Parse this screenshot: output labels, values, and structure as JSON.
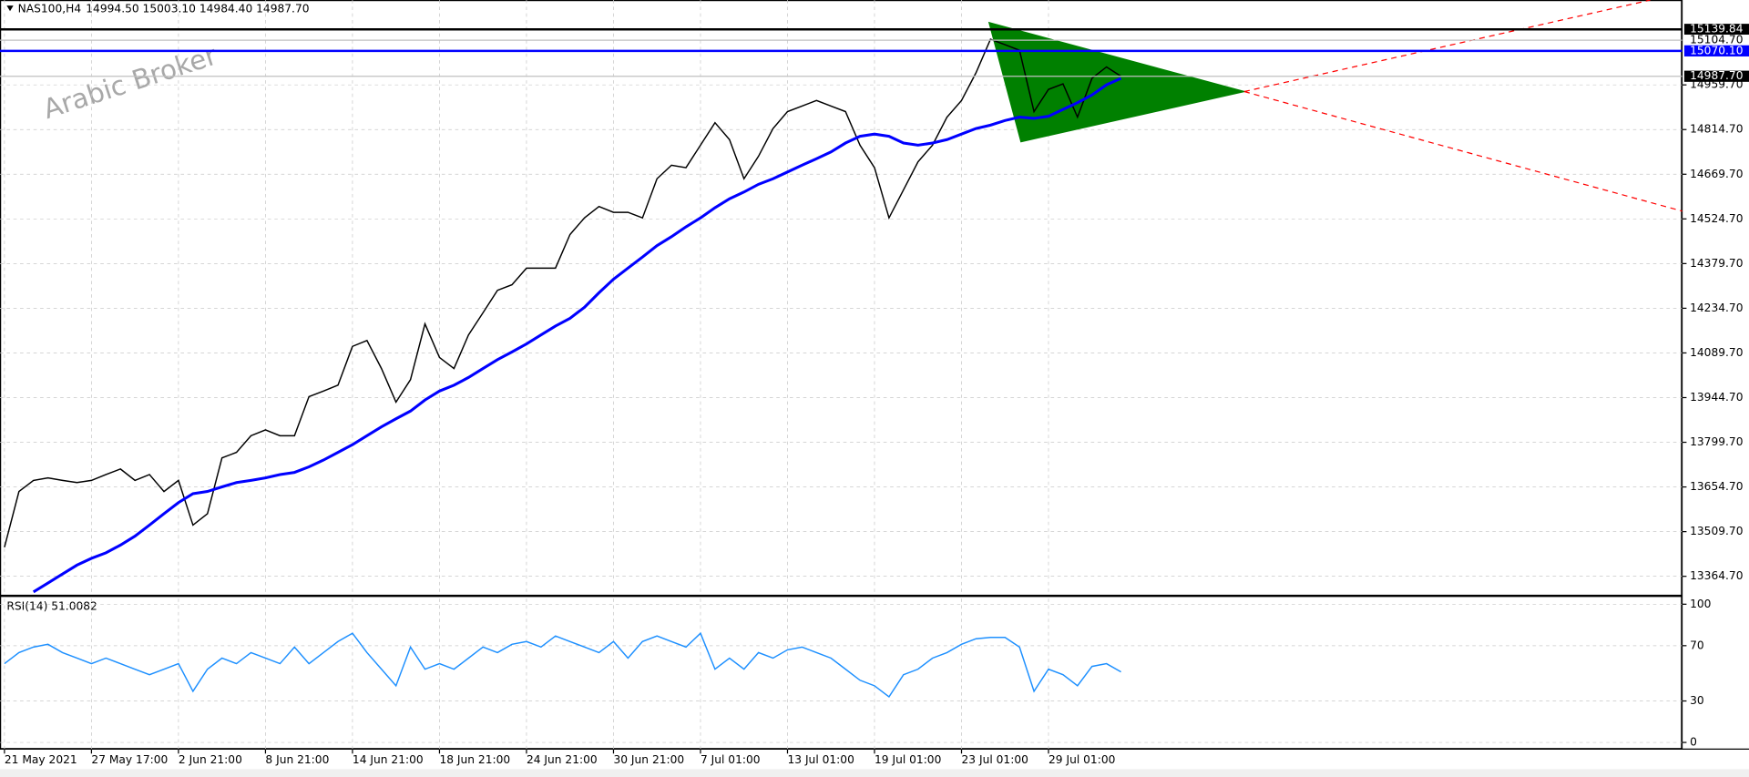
{
  "chart_data": [
    {
      "type": "line",
      "title": "NAS100,H4",
      "subtitle": "14994.50 15003.10 14984.40 14987.70",
      "watermark": "Arabic Broker",
      "categories": [
        "21 May 2021",
        null,
        null,
        null,
        null,
        null,
        "27 May 17:00",
        null,
        null,
        null,
        null,
        null,
        "2 Jun 21:00",
        null,
        null,
        null,
        null,
        null,
        "8 Jun 21:00",
        null,
        null,
        null,
        null,
        null,
        "14 Jun 21:00",
        null,
        null,
        null,
        null,
        null,
        "18 Jun 21:00",
        null,
        null,
        null,
        null,
        null,
        "24 Jun 21:00",
        null,
        null,
        null,
        null,
        null,
        "30 Jun 21:00",
        null,
        null,
        null,
        null,
        null,
        "7 Jul 01:00",
        null,
        null,
        null,
        null,
        null,
        "13 Jul 01:00",
        null,
        null,
        null,
        null,
        null,
        "19 Jul 01:00",
        null,
        null,
        null,
        null,
        null,
        "23 Jul 01:00",
        null,
        null,
        null,
        null,
        null,
        "29 Jul 01:00",
        null,
        null,
        null,
        null,
        null
      ],
      "series": [
        {
          "name": "NAS100,H4",
          "color": "#000000",
          "values": [
            13459,
            13640,
            13676,
            13684,
            13676,
            13669,
            13676,
            13695,
            13713,
            13676,
            13695,
            13640,
            13676,
            13531,
            13568,
            13749,
            13767,
            13821,
            13840,
            13821,
            13821,
            13948,
            13966,
            13985,
            14111,
            14130,
            14039,
            13930,
            14003,
            14184,
            14075,
            14039,
            14148,
            14220,
            14293,
            14311,
            14365,
            14365,
            14365,
            14474,
            14528,
            14565,
            14546,
            14546,
            14528,
            14655,
            14699,
            14691,
            14764,
            14837,
            14782,
            14655,
            14728,
            14818,
            14873,
            14891,
            14909,
            14891,
            14873,
            14764,
            14691,
            14528,
            14619,
            14710,
            14764,
            14855,
            14909,
            14999,
            15108,
            15090,
            15072,
            14873,
            14945,
            14963,
            14855,
            14981,
            15018,
            14987.7
          ]
        },
        {
          "name": "MA",
          "color": "#0000ff",
          "values": [
            null,
            null,
            13314,
            13343,
            13372,
            13401,
            13423,
            13441,
            13466,
            13495,
            13531,
            13568,
            13604,
            13633,
            13640,
            13655,
            13669,
            13676,
            13684,
            13695,
            13702,
            13720,
            13742,
            13767,
            13792,
            13821,
            13850,
            13876,
            13901,
            13937,
            13966,
            13985,
            14010,
            14039,
            14068,
            14093,
            14119,
            14148,
            14177,
            14202,
            14238,
            14285,
            14329,
            14365,
            14401,
            14438,
            14467,
            14499,
            14528,
            14561,
            14590,
            14612,
            14637,
            14655,
            14677,
            14699,
            14720,
            14742,
            14771,
            14793,
            14800,
            14793,
            14771,
            14764,
            14771,
            14782,
            14800,
            14818,
            14829,
            14844,
            14855,
            14851,
            14858,
            14880,
            14902,
            14927,
            14960,
            14981
          ]
        }
      ],
      "ylim": [
        13306.7,
        15235.2
      ],
      "yticks": [
        {
          "value": 14959.7,
          "label": "14959.70"
        },
        {
          "value": 14814.7,
          "label": "14814.70"
        },
        {
          "value": 14669.7,
          "label": "14669.70"
        },
        {
          "value": 14524.7,
          "label": "14524.70"
        },
        {
          "value": 14379.7,
          "label": "14379.70"
        },
        {
          "value": 14234.7,
          "label": "14234.70"
        },
        {
          "value": 14089.7,
          "label": "14089.70"
        },
        {
          "value": 13944.7,
          "label": "13944.70"
        },
        {
          "value": 13799.7,
          "label": "13799.70"
        },
        {
          "value": 13654.7,
          "label": "13654.70"
        },
        {
          "value": 13509.7,
          "label": "13509.70"
        },
        {
          "value": 13364.7,
          "label": "13364.70"
        }
      ],
      "levels": [
        {
          "value": 15139.84,
          "label": "15139.84",
          "color": "#000000"
        },
        {
          "value": 15104.7,
          "label": "15104.70",
          "color": "#c0c0c0"
        },
        {
          "value": 15070.1,
          "label": "15070.10",
          "color": "#0000ff"
        },
        {
          "value": 14987.7,
          "label": "14987.70",
          "color": "#c0c0c0"
        }
      ],
      "triangle": {
        "color": "#008000",
        "x": [
          67.9,
          70.1,
          85.5
        ],
        "y": [
          15162,
          14775,
          14938
        ]
      },
      "trend_lines": {
        "color": "#ff0000",
        "lines": [
          {
            "x": [
              85.5,
              115.7
            ],
            "y": [
              14938,
              14550
            ]
          },
          {
            "x": [
              85.5,
              113.5
            ],
            "y": [
              14938,
              15235
            ]
          }
        ]
      },
      "grid": true
    },
    {
      "type": "line",
      "title": "RSI(14) 51.0082",
      "series": [
        {
          "name": "RSI(14)",
          "color": "#1e90ff",
          "values": [
            57,
            65,
            69,
            71,
            65,
            61,
            57,
            61,
            57,
            53,
            49,
            53,
            57,
            37,
            53,
            61,
            57,
            65,
            61,
            57,
            69,
            57,
            65,
            73,
            79,
            65,
            53,
            41,
            69,
            53,
            57,
            53,
            61,
            69,
            65,
            71,
            73,
            69,
            77,
            73,
            69,
            65,
            73,
            61,
            73,
            77,
            73,
            69,
            79,
            53,
            61,
            53,
            65,
            61,
            67,
            69,
            65,
            61,
            53,
            45,
            41,
            33,
            49,
            53,
            61,
            65,
            71,
            75,
            76,
            76,
            69,
            37,
            53,
            49,
            41,
            55,
            57,
            51.0082
          ]
        }
      ],
      "ylim": [
        0,
        100
      ],
      "yticks": [
        0,
        30,
        70,
        100
      ],
      "grid": true
    }
  ]
}
